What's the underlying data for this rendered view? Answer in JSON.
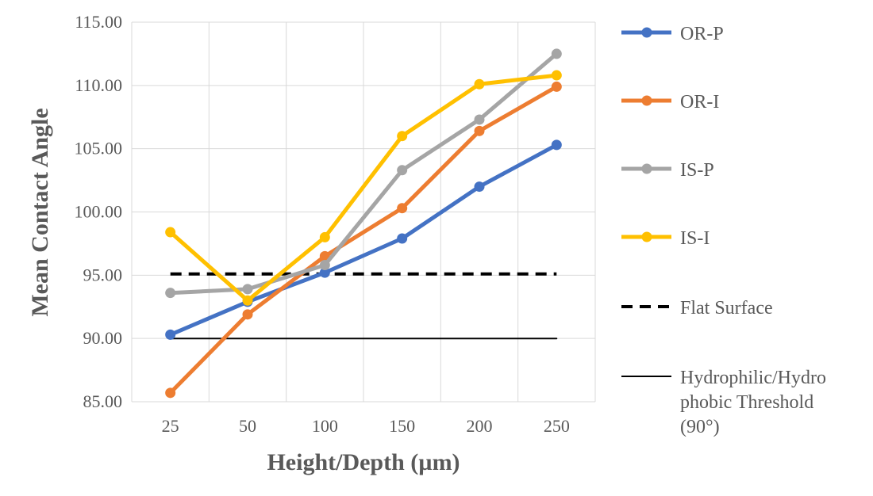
{
  "chart_data": {
    "type": "line",
    "categories": [
      "25",
      "50",
      "100",
      "150",
      "200",
      "250"
    ],
    "xlabel": "Height/Depth (µm)",
    "ylabel": "Mean Contact Angle",
    "ylim": [
      85,
      115
    ],
    "yticks": [
      "85.00",
      "90.00",
      "95.00",
      "100.00",
      "105.00",
      "110.00",
      "115.00"
    ],
    "grid": true,
    "legend_position": "right",
    "series": [
      {
        "name": "OR-P",
        "color": "#4472C4",
        "style": "solid-marker",
        "values": [
          90.3,
          92.9,
          95.2,
          97.9,
          102.0,
          105.3
        ]
      },
      {
        "name": "OR-I",
        "color": "#ED7D31",
        "style": "solid-marker",
        "values": [
          85.7,
          91.9,
          96.5,
          100.3,
          106.4,
          109.9
        ]
      },
      {
        "name": "IS-P",
        "color": "#A5A5A5",
        "style": "solid-marker",
        "values": [
          93.6,
          93.9,
          95.8,
          103.3,
          107.3,
          112.5
        ]
      },
      {
        "name": "IS-I",
        "color": "#FFC000",
        "style": "solid-marker",
        "values": [
          98.4,
          93.0,
          98.0,
          106.0,
          110.1,
          110.8
        ]
      },
      {
        "name": "Flat Surface",
        "color": "#000000",
        "style": "dashed",
        "values": [
          95.1,
          95.1,
          95.1,
          95.1,
          95.1,
          95.1
        ]
      },
      {
        "name": "Hydrophilic/Hydrophobic Threshold (90°)",
        "legend_lines": [
          "Hydrophilic/Hydro",
          "phobic Threshold",
          "(90°)"
        ],
        "color": "#000000",
        "style": "thin",
        "values": [
          90,
          90,
          90,
          90,
          90,
          90
        ]
      }
    ]
  }
}
